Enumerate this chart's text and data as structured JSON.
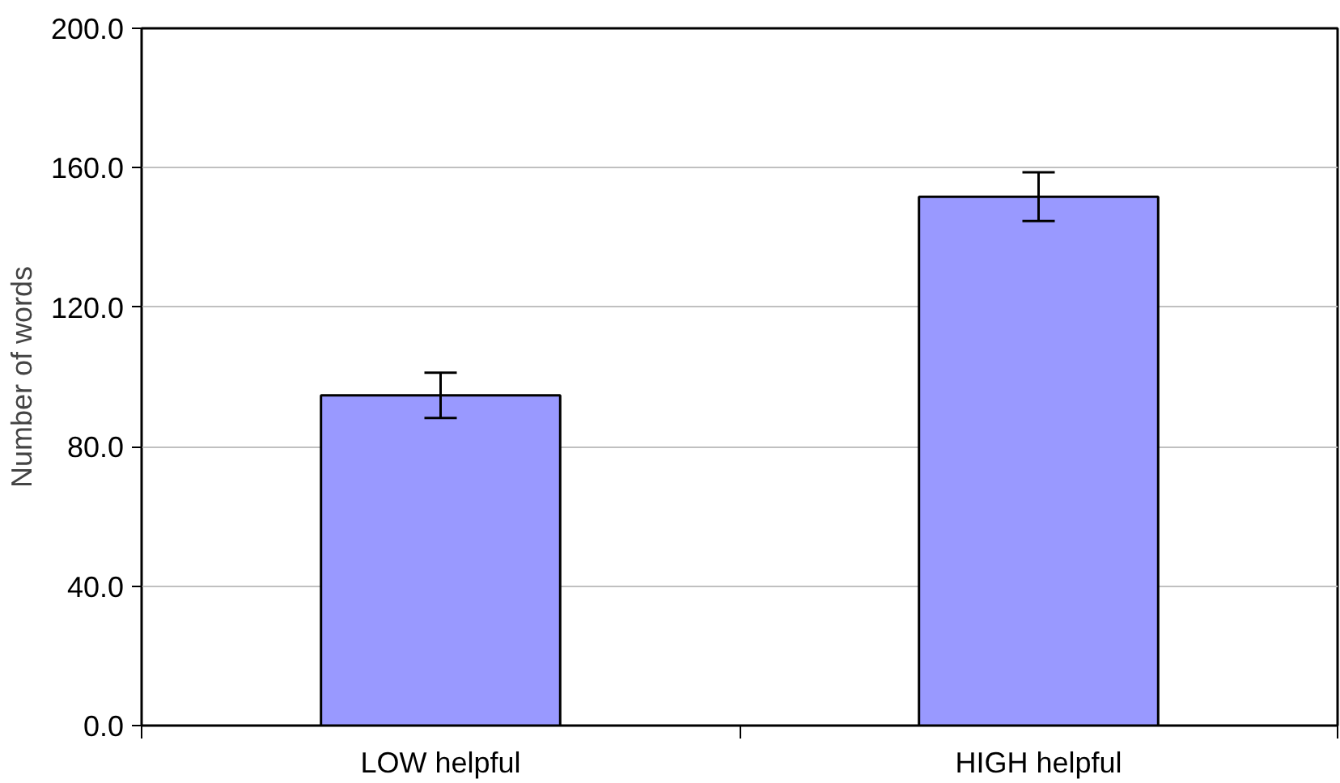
{
  "chart_data": {
    "type": "bar",
    "ylabel": "Number of words",
    "categories": [
      "LOW helpful",
      "HIGH helpful"
    ],
    "values": [
      94.7,
      151.7
    ],
    "errors": [
      6.5,
      7
    ],
    "color": "#9999ff",
    "ylim": [
      0,
      200
    ],
    "yticks": [
      {
        "value": 0,
        "label": "0.0"
      },
      {
        "value": 40,
        "label": "40.0"
      },
      {
        "value": 80,
        "label": "80.0"
      },
      {
        "value": 120,
        "label": "120.0"
      },
      {
        "value": 160,
        "label": "160.0"
      },
      {
        "value": 200,
        "label": "200.0"
      }
    ],
    "grid": "y"
  }
}
